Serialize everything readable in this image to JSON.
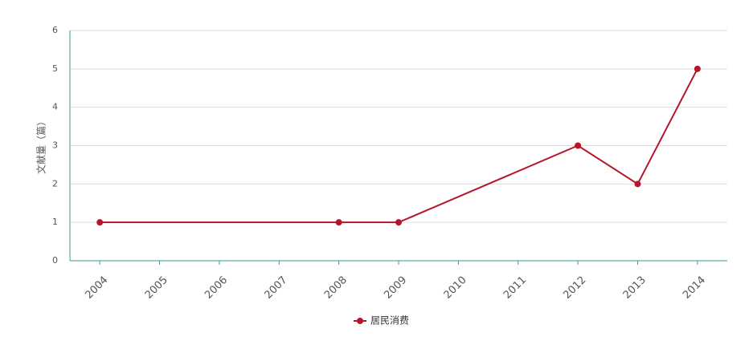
{
  "chart_data": {
    "type": "line",
    "y_label": "文献量（篇）",
    "x": [
      2004,
      2008,
      2009,
      2012,
      2013,
      2014
    ],
    "series": [
      {
        "name": "居民消费",
        "color": "#b5152b",
        "values": [
          1,
          1,
          1,
          3,
          2,
          5
        ]
      }
    ],
    "xlim": [
      2003.5,
      2014.5
    ],
    "xticks": [
      2004,
      2005,
      2006,
      2007,
      2008,
      2009,
      2010,
      2011,
      2012,
      2013,
      2014
    ],
    "ylim": [
      0,
      6
    ],
    "yticks": [
      0,
      1,
      2,
      3,
      4,
      5,
      6
    ],
    "grid": true,
    "legend": "bottom"
  }
}
